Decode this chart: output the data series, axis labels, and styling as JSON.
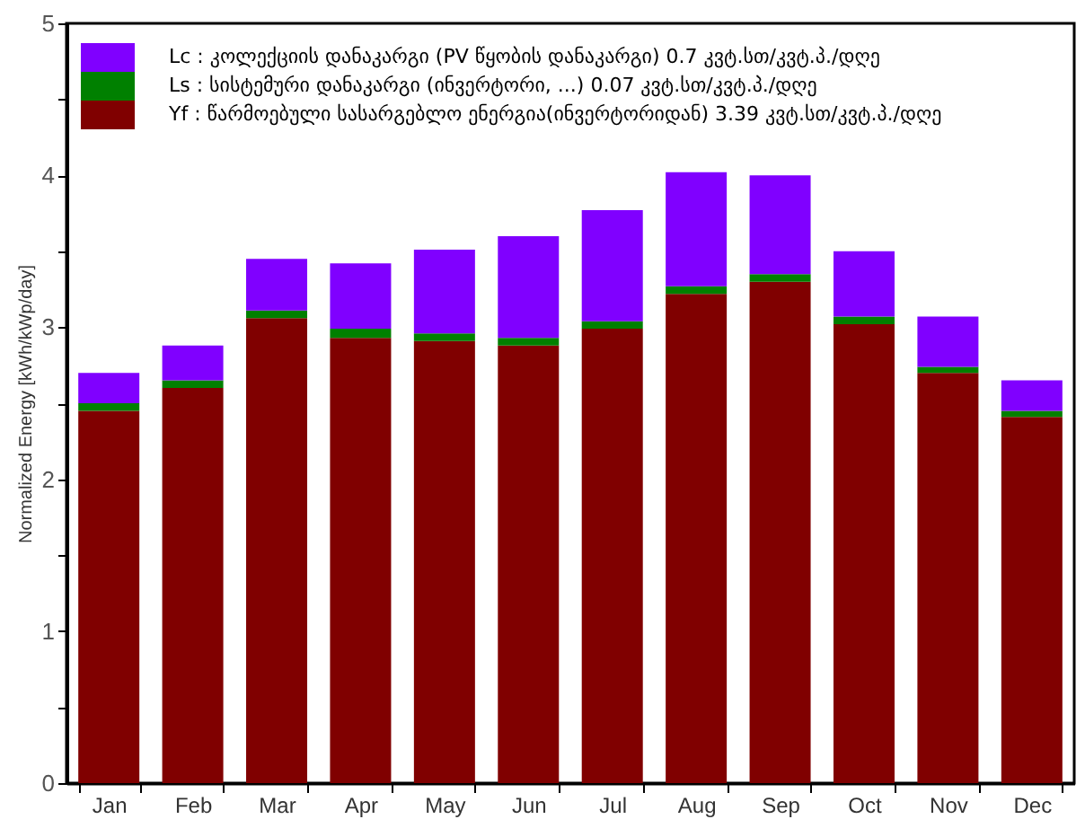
{
  "chart_data": {
    "type": "bar",
    "stacked": true,
    "ylabel": "Normalized Energy [kWh/kWp/day]",
    "categories": [
      "Jan",
      "Feb",
      "Mar",
      "Apr",
      "May",
      "Jun",
      "Jul",
      "Aug",
      "Sep",
      "Oct",
      "Nov",
      "Dec"
    ],
    "series": [
      {
        "name": "Yf : წარმოებული სასარგებლო ენერგია(ინვერტორიდან)  3.39 კვტ.სთ/კვტ.პ./დღე",
        "color": "#800000",
        "values": [
          2.45,
          2.6,
          3.06,
          2.93,
          2.91,
          2.88,
          2.99,
          3.22,
          3.3,
          3.02,
          2.7,
          2.41
        ]
      },
      {
        "name": "Ls : სისტემური დანაკარგი  (ინვერტორი, ...)  0.07 კვტ.სთ/კვტ.პ./დღე",
        "color": "#008000",
        "values": [
          0.05,
          0.05,
          0.05,
          0.06,
          0.05,
          0.05,
          0.05,
          0.05,
          0.05,
          0.05,
          0.04,
          0.04
        ]
      },
      {
        "name": "Lc : კოლექციის დანაკარგი (PV წყობის დანაკარგი)  0.7 კვტ.სთ/კვტ.პ./დღე",
        "color": "#8000ff",
        "values": [
          0.2,
          0.23,
          0.34,
          0.43,
          0.55,
          0.67,
          0.73,
          0.75,
          0.65,
          0.43,
          0.33,
          0.2
        ]
      }
    ],
    "ylim": [
      0,
      5
    ],
    "yticks": [
      0,
      {
        "value": 0.5,
        "label": null
      },
      1,
      {
        "value": 1.5,
        "label": null
      },
      2,
      {
        "value": 2.5,
        "label": null
      },
      3,
      {
        "value": 3.5,
        "label": null
      },
      4,
      {
        "value": 4.5,
        "label": null
      },
      5
    ],
    "legend": "top left",
    "grid": false
  }
}
